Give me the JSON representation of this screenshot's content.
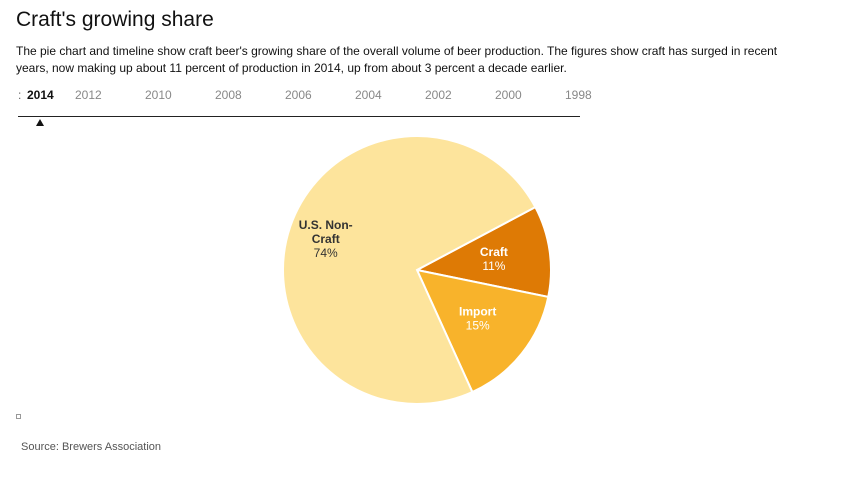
{
  "header": {
    "title": "Craft's growing share",
    "description": "The pie chart and timeline show craft beer's growing share of the overall volume of beer production. The figures show craft has surged in recent years, now making up about 11 percent of production in 2014, up from about 3 percent a decade earlier."
  },
  "timeline": {
    "edge_glyph": ":",
    "selected_year": "2014",
    "years": [
      "2014",
      "2012",
      "2010",
      "2008",
      "2006",
      "2004",
      "2002",
      "2000",
      "1998"
    ]
  },
  "chart_data": {
    "type": "pie",
    "title": "",
    "year": "2014",
    "slices": [
      {
        "name": "Craft",
        "value": 11,
        "label": "11%",
        "color": "#de7a05"
      },
      {
        "name": "Import",
        "value": 15,
        "label": "15%",
        "color": "#f8b32b"
      },
      {
        "name": "U.S. Non-Craft",
        "value": 74,
        "label": "74%",
        "color": "#fde49c"
      }
    ]
  },
  "footer": {
    "source": "Source: Brewers Association"
  }
}
